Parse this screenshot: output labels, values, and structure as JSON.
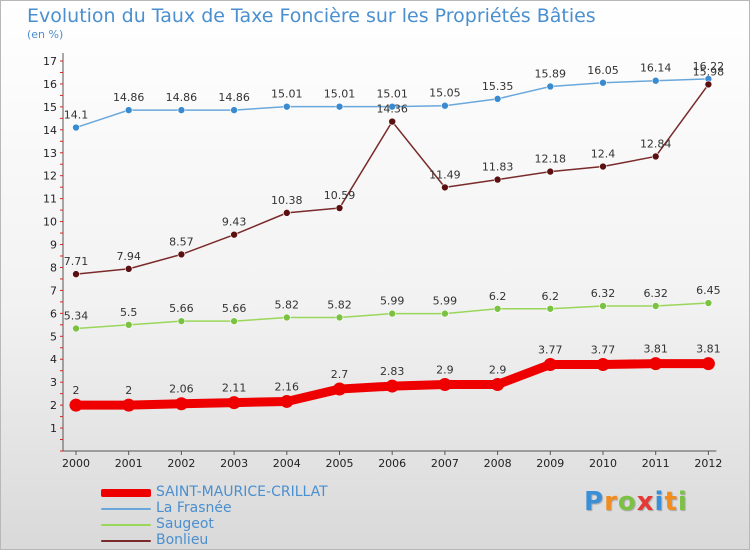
{
  "title": "Evolution du Taux de Taxe Foncière sur les Propriétés Bâties",
  "unit_label": "(en %)",
  "logo": {
    "text": "Proxiti",
    "letter_colors": [
      "#3a8fd6",
      "#f28c1e",
      "#7cc242",
      "#e53935",
      "#3a8fd6",
      "#f28c1e",
      "#7cc242"
    ]
  },
  "chart_data": {
    "type": "line",
    "title": "Evolution du Taux de Taxe Foncière sur les Propriétés Bâties",
    "ylabel": "(en %)",
    "xlabel": "",
    "x": [
      "2000",
      "2001",
      "2002",
      "2003",
      "2004",
      "2005",
      "2006",
      "2007",
      "2008",
      "2009",
      "2010",
      "2011",
      "2012"
    ],
    "ylim": [
      0,
      17
    ],
    "yticks": [
      1,
      2,
      3,
      4,
      5,
      6,
      7,
      8,
      9,
      10,
      11,
      12,
      13,
      14,
      15,
      16,
      17
    ],
    "grid": false,
    "legend_position": "bottom-left",
    "series": [
      {
        "name": "SAINT-MAURICE-CRILLAT",
        "color": "#ee0000",
        "emphasis": "thick",
        "values": [
          2,
          2,
          2.06,
          2.11,
          2.16,
          2.7,
          2.83,
          2.9,
          2.9,
          3.77,
          3.77,
          3.81,
          3.81
        ],
        "labels": [
          "2",
          "2",
          "2.06",
          "2.11",
          "2.16",
          "2.7",
          "2.83",
          "2.9",
          "2.9",
          "3.77",
          "3.77",
          "3.81",
          "3.81"
        ]
      },
      {
        "name": "La Frasnée",
        "color": "#6aa8dc",
        "marker_color": "#3a8ad0",
        "values": [
          14.1,
          14.86,
          14.86,
          14.86,
          15.01,
          15.01,
          15.01,
          15.05,
          15.35,
          15.89,
          16.05,
          16.14,
          16.22
        ],
        "labels": [
          "14.1",
          "14.86",
          "14.86",
          "14.86",
          "15.01",
          "15.01",
          "15.01",
          "15.05",
          "15.35",
          "15.89",
          "16.05",
          "16.14",
          "16.22"
        ]
      },
      {
        "name": "Saugeot",
        "color": "#9ad65a",
        "marker_color": "#7cc242",
        "values": [
          5.34,
          5.5,
          5.66,
          5.66,
          5.82,
          5.82,
          5.99,
          5.99,
          6.2,
          6.2,
          6.32,
          6.32,
          6.45
        ],
        "labels": [
          "5.34",
          "5.5",
          "5.66",
          "5.66",
          "5.82",
          "5.82",
          "5.99",
          "5.99",
          "6.2",
          "6.2",
          "6.32",
          "6.32",
          "6.45"
        ]
      },
      {
        "name": "Bonlieu",
        "color": "#7a2a2a",
        "marker_color": "#5a1010",
        "values": [
          7.71,
          7.94,
          8.57,
          9.43,
          10.38,
          10.59,
          14.36,
          11.49,
          11.83,
          12.18,
          12.4,
          12.84,
          15.98
        ],
        "labels": [
          "7.71",
          "7.94",
          "8.57",
          "9.43",
          "10.38",
          "10.59",
          "14.36",
          "11.49",
          "11.83",
          "12.18",
          "12.4",
          "12.84",
          "15.98"
        ]
      }
    ]
  }
}
